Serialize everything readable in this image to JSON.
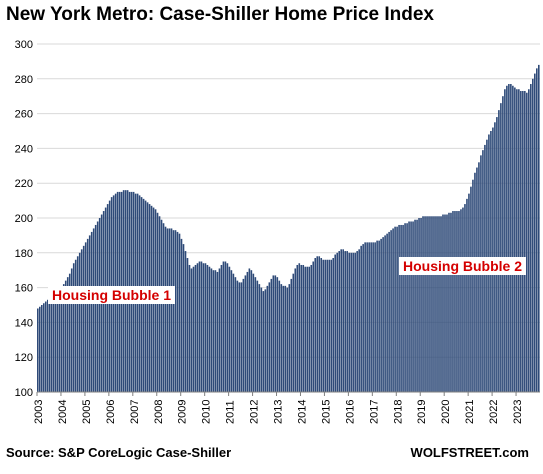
{
  "title": "New York Metro: Case-Shiller Home Price Index",
  "source": "Source: S&P CoreLogic Case-Shiller",
  "brand": "WOLFSTREET.com",
  "chart_data": {
    "type": "bar",
    "color": "#2e4a78",
    "grid": true,
    "ylim": [
      100,
      300
    ],
    "yticks": [
      100,
      120,
      140,
      160,
      180,
      200,
      220,
      240,
      260,
      280,
      300
    ],
    "xticks": [
      "2003",
      "2004",
      "2005",
      "2006",
      "2007",
      "2008",
      "2009",
      "2010",
      "2011",
      "2012",
      "2013",
      "2014",
      "2015",
      "2016",
      "2017",
      "2018",
      "2019",
      "2020",
      "2021",
      "2022",
      "2023"
    ],
    "annotations": [
      "Housing Bubble 1",
      "Housing Bubble 2"
    ],
    "start": "2003-01",
    "frequency": "monthly",
    "values": [
      148,
      149,
      150,
      151,
      152,
      153,
      154,
      155,
      156,
      157,
      158,
      159,
      160,
      162,
      164,
      166,
      168,
      171,
      174,
      176,
      178,
      180,
      182,
      184,
      186,
      188,
      190,
      192,
      194,
      196,
      198,
      200,
      202,
      204,
      206,
      208,
      210,
      212,
      213,
      214,
      215,
      215,
      215,
      216,
      216,
      216,
      215,
      215,
      215,
      214,
      214,
      213,
      212,
      211,
      210,
      209,
      208,
      207,
      206,
      205,
      203,
      201,
      199,
      197,
      195,
      194,
      194,
      194,
      193,
      193,
      192,
      191,
      188,
      185,
      181,
      177,
      173,
      171,
      172,
      173,
      174,
      175,
      175,
      174,
      174,
      173,
      172,
      171,
      170,
      170,
      169,
      171,
      173,
      175,
      175,
      174,
      172,
      170,
      168,
      166,
      164,
      163,
      163,
      165,
      167,
      169,
      171,
      170,
      168,
      166,
      164,
      162,
      160,
      158,
      159,
      161,
      163,
      165,
      167,
      167,
      166,
      164,
      162,
      161,
      161,
      160,
      162,
      165,
      168,
      171,
      173,
      174,
      173,
      173,
      172,
      172,
      172,
      173,
      175,
      177,
      178,
      178,
      177,
      176,
      176,
      176,
      176,
      176,
      177,
      179,
      180,
      181,
      182,
      182,
      181,
      181,
      180,
      180,
      180,
      180,
      181,
      182,
      184,
      185,
      186,
      186,
      186,
      186,
      186,
      186,
      187,
      187,
      188,
      189,
      190,
      191,
      192,
      193,
      194,
      195,
      195,
      196,
      196,
      196,
      197,
      197,
      198,
      198,
      198,
      199,
      199,
      200,
      200,
      201,
      201,
      201,
      201,
      201,
      201,
      201,
      201,
      201,
      201,
      202,
      202,
      202,
      203,
      203,
      204,
      204,
      204,
      204,
      205,
      206,
      208,
      211,
      214,
      218,
      222,
      226,
      229,
      232,
      236,
      239,
      242,
      245,
      248,
      250,
      252,
      255,
      258,
      262,
      266,
      270,
      274,
      276,
      277,
      277,
      276,
      275,
      274,
      274,
      273,
      273,
      273,
      272,
      274,
      277,
      280,
      283,
      286,
      288
    ]
  }
}
